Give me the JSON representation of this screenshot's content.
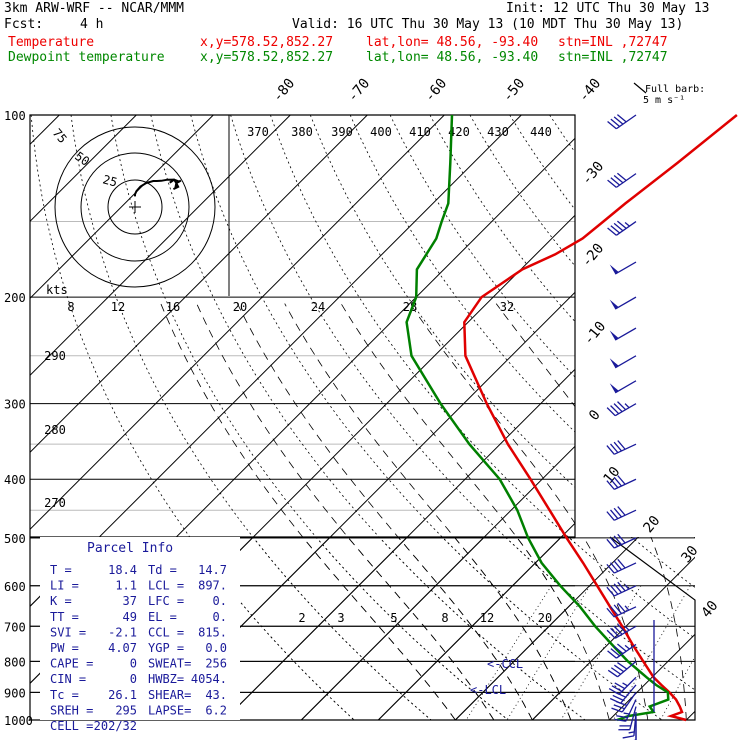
{
  "header": {
    "line1_left": "3km ARW-WRF -- NCAR/MMM",
    "line1_right": "Init: 12 UTC Thu 30 May 13",
    "fcst_label": "Fcst:",
    "fcst_value": "4 h",
    "valid": "Valid: 16 UTC Thu 30 May 13 (10 MDT Thu 30 May 13)",
    "temp_label": "Temperature",
    "dew_label": "Dewpoint temperature",
    "xy": "x,y=578.52,852.27",
    "latlon": "lat,lon= 48.56, -93.40",
    "stn": "stn=INL ,72747"
  },
  "colors": {
    "temperature": "#e00000",
    "dewpoint": "#008000",
    "text_blue": "#1a1a9a",
    "barbs": "#1a1a9a"
  },
  "barb_legend": [
    "Full barb:",
    "5 m s⁻¹"
  ],
  "parcel_info": {
    "title": "Parcel Info",
    "rows": [
      [
        "T  =",
        "18.4",
        "Td =",
        "14.7"
      ],
      [
        "LI =",
        "1.1",
        "LCL =",
        "897."
      ],
      [
        "K  =",
        "37",
        "LFC =",
        "0."
      ],
      [
        "TT =",
        "49",
        "EL  =",
        "0."
      ],
      [
        "SVI =",
        "-2.1",
        "CCL =",
        "815."
      ],
      [
        "PW =",
        "4.07",
        "YGP =",
        "0.0"
      ],
      [
        "CAPE =",
        "0",
        "SWEAT=",
        "256"
      ],
      [
        "CIN =",
        "0",
        "HWBZ=",
        "4054."
      ],
      [
        "Tc =",
        "26.1",
        "SHEAR=",
        "43."
      ],
      [
        "SREH =",
        "295",
        "LAPSE=",
        "6.2"
      ],
      [
        "CELL =",
        "202/32",
        "",
        ""
      ]
    ]
  },
  "hodograph": {
    "ring_labels": [
      "75",
      "50",
      "25"
    ],
    "kts_label": "kts"
  },
  "level_markers": {
    "lcl": "<-LCL",
    "ccl": "<-CCL"
  },
  "chart_data": {
    "type": "skew-T log-P sounding",
    "pressure_levels_hPa": [
      100,
      200,
      300,
      400,
      500,
      600,
      700,
      800,
      900,
      1000
    ],
    "isotherm_labels_C": [
      "-80",
      "-70",
      "-60",
      "-50",
      "-40",
      "-30",
      "-20",
      "-10",
      "0",
      "10",
      "20",
      "30",
      "40"
    ],
    "theta_labels_K": [
      "370",
      "380",
      "390",
      "400",
      "410",
      "420",
      "430",
      "440",
      "290",
      "280",
      "270"
    ],
    "mixing_ratio_labels": [
      "8",
      "12",
      "16",
      "20",
      "24",
      "28",
      "32",
      "2",
      "3",
      "5",
      "8",
      "12",
      "20"
    ],
    "temperature": {
      "p": [
        1000,
        985,
        970,
        950,
        925,
        900,
        875,
        850,
        800,
        750,
        700,
        650,
        600,
        550,
        500,
        450,
        400,
        350,
        300,
        250,
        220,
        200,
        180,
        170,
        160,
        150,
        140,
        120,
        100
      ],
      "t": [
        20,
        17.5,
        18.4,
        17.4,
        16,
        14.2,
        12.2,
        10.2,
        6.8,
        3.2,
        -0.5,
        -4.6,
        -9,
        -13.8,
        -19.2,
        -25,
        -31.5,
        -39,
        -47,
        -56,
        -60.5,
        -61.5,
        -59.8,
        -57.5,
        -56,
        -55.5,
        -55,
        -53.5,
        -52
      ]
    },
    "dewpoint": {
      "p": [
        1000,
        985,
        970,
        950,
        925,
        900,
        875,
        850,
        800,
        750,
        700,
        650,
        600,
        550,
        500,
        450,
        400,
        350,
        300,
        250,
        220,
        200,
        180,
        160,
        150,
        140,
        120,
        100
      ],
      "td": [
        11,
        12,
        14.7,
        13.5,
        15,
        14,
        11.5,
        9.3,
        4.8,
        0.5,
        -4,
        -8.5,
        -13.8,
        -19.2,
        -24.2,
        -29.2,
        -35.5,
        -44,
        -53,
        -63,
        -68,
        -70,
        -73.5,
        -75,
        -76.5,
        -78,
        -83,
        -89
      ]
    },
    "wind": [
      [
        1000,
        180,
        10
      ],
      [
        985,
        180,
        12
      ],
      [
        970,
        185,
        15
      ],
      [
        950,
        195,
        20
      ],
      [
        925,
        205,
        25
      ],
      [
        900,
        215,
        30
      ],
      [
        875,
        220,
        32
      ],
      [
        850,
        225,
        35
      ],
      [
        800,
        230,
        40
      ],
      [
        750,
        235,
        45
      ],
      [
        700,
        240,
        45
      ],
      [
        650,
        245,
        45
      ],
      [
        600,
        245,
        45
      ],
      [
        550,
        245,
        42
      ],
      [
        500,
        245,
        40
      ],
      [
        450,
        245,
        40
      ],
      [
        400,
        245,
        40
      ],
      [
        350,
        245,
        42
      ],
      [
        300,
        240,
        45
      ],
      [
        275,
        240,
        48
      ],
      [
        250,
        240,
        50
      ],
      [
        225,
        240,
        50
      ],
      [
        200,
        240,
        50
      ],
      [
        175,
        240,
        48
      ],
      [
        150,
        235,
        45
      ],
      [
        125,
        235,
        42
      ],
      [
        100,
        235,
        40
      ]
    ]
  }
}
